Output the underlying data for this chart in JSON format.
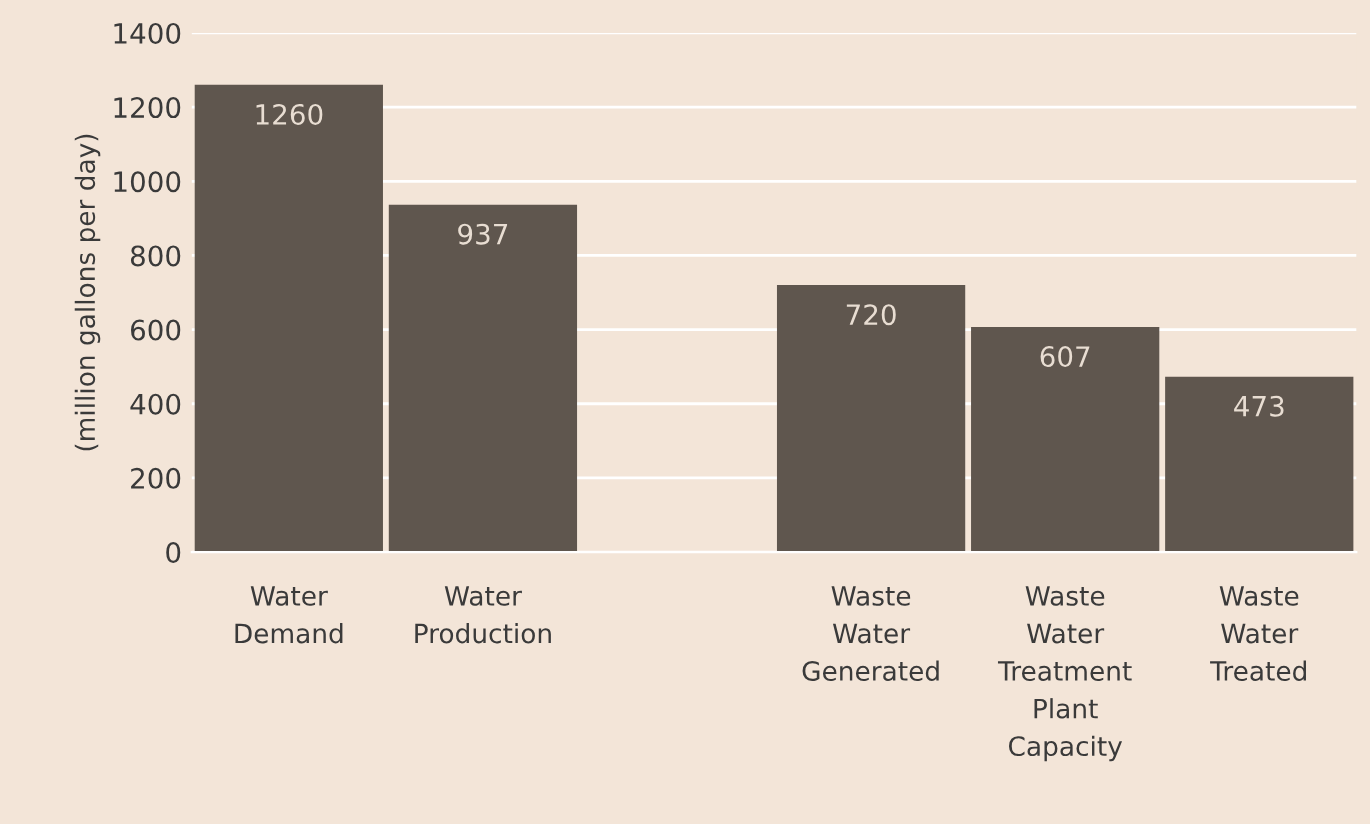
{
  "chart_data": {
    "type": "bar",
    "ylabel": "(million gallons per day)",
    "categories": [
      "Water Demand",
      "Water Production",
      null,
      "Waste Water Generated",
      "Waste Water Treatment Plant Capacity",
      "Waste Water Treated"
    ],
    "values": [
      1260,
      937,
      null,
      720,
      607,
      473
    ],
    "color": "#5f564e",
    "ylim": [
      0,
      1400
    ],
    "yticks": [
      0,
      200,
      400,
      600,
      800,
      1000,
      1200,
      1400
    ],
    "grid": "y",
    "data_labels": true
  }
}
